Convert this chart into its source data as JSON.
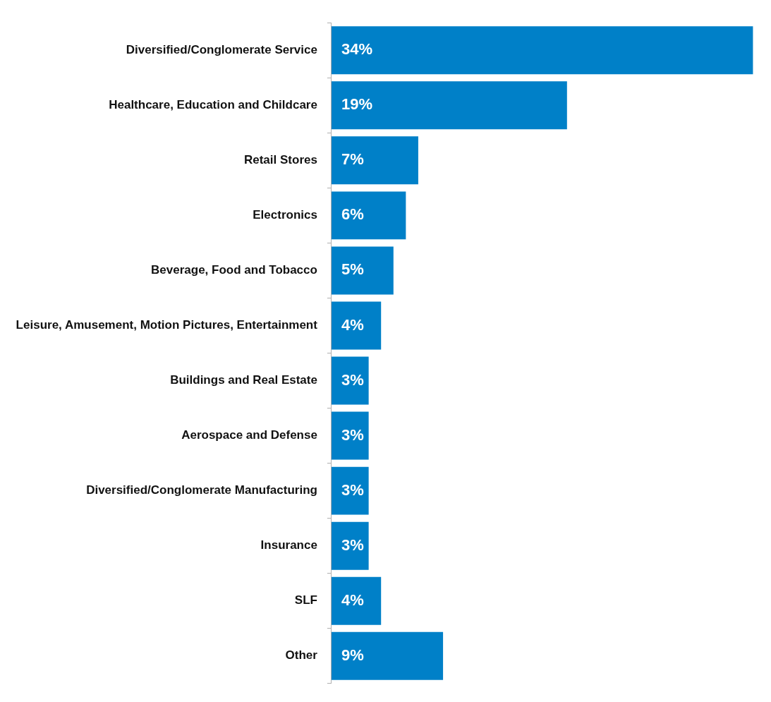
{
  "chart_data": {
    "type": "bar",
    "orientation": "horizontal",
    "categories": [
      "Diversified/Conglomerate Service",
      "Healthcare, Education and Childcare",
      "Retail Stores",
      "Electronics",
      "Beverage, Food and Tobacco",
      "Leisure, Amusement, Motion Pictures, Entertainment",
      "Buildings and Real Estate",
      "Aerospace and Defense",
      "Diversified/Conglomerate Manufacturing",
      "Insurance",
      "SLF",
      "Other"
    ],
    "values": [
      34,
      19,
      7,
      6,
      5,
      4,
      3,
      3,
      3,
      3,
      4,
      9
    ],
    "color": "#0080c8",
    "value_labels": [
      "34%",
      "19%",
      "7%",
      "6%",
      "5%",
      "4%",
      "3%",
      "3%",
      "3%",
      "3%",
      "4%",
      "9%"
    ],
    "legend": false
  }
}
